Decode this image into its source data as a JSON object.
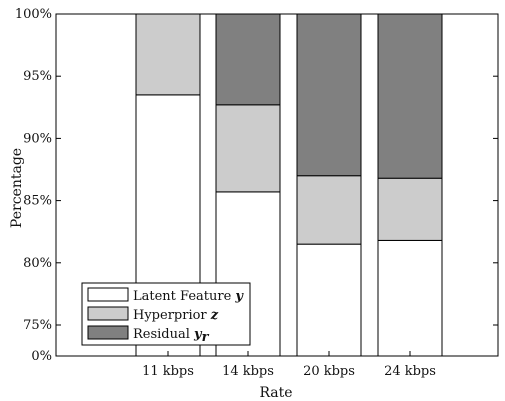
{
  "chart_data": {
    "type": "bar",
    "stacked": true,
    "xlabel": "Rate",
    "ylabel": "Percentage",
    "categories": [
      "11 kbps",
      "14 kbps",
      "20 kbps",
      "24 kbps"
    ],
    "yticks": [
      "0%",
      "75%",
      "80%",
      "85%",
      "90%",
      "95%",
      "100%"
    ],
    "y_axis_note": "broken axis: bottom tick 0%, then 75%–100% linear",
    "series": [
      {
        "name_text": "Latent Feature",
        "name_symbol": "y",
        "name_subscript": "",
        "color": "#ffffff",
        "values": [
          93.5,
          85.7,
          81.5,
          81.8
        ]
      },
      {
        "name_text": "Hyperprior",
        "name_symbol": "z",
        "name_subscript": "",
        "color": "#cccccc",
        "values": [
          6.5,
          7.0,
          5.5,
          5.0
        ]
      },
      {
        "name_text": "Residual",
        "name_symbol": "y",
        "name_subscript": "r",
        "color": "#808080",
        "values": [
          0.0,
          7.3,
          13.0,
          13.2
        ]
      }
    ],
    "grid": false,
    "legend_position": "bottom-left"
  }
}
